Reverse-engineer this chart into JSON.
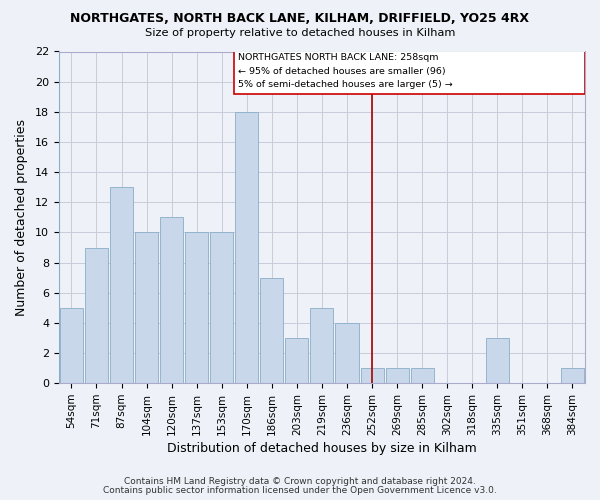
{
  "title": "NORTHGATES, NORTH BACK LANE, KILHAM, DRIFFIELD, YO25 4RX",
  "subtitle": "Size of property relative to detached houses in Kilham",
  "xlabel": "Distribution of detached houses by size in Kilham",
  "ylabel": "Number of detached properties",
  "categories": [
    "54sqm",
    "71sqm",
    "87sqm",
    "104sqm",
    "120sqm",
    "137sqm",
    "153sqm",
    "170sqm",
    "186sqm",
    "203sqm",
    "219sqm",
    "236sqm",
    "252sqm",
    "269sqm",
    "285sqm",
    "302sqm",
    "318sqm",
    "335sqm",
    "351sqm",
    "368sqm",
    "384sqm"
  ],
  "values": [
    5,
    9,
    13,
    10,
    11,
    10,
    10,
    18,
    7,
    3,
    5,
    4,
    1,
    1,
    1,
    0,
    0,
    3,
    0,
    0,
    1
  ],
  "bar_color": "#c8d8ea",
  "bar_edge_color": "#8aaec8",
  "vline_index": 12,
  "vline_color": "#aa0000",
  "annotation_lines": [
    "NORTHGATES NORTH BACK LANE: 258sqm",
    "← 95% of detached houses are smaller (96)",
    "5% of semi-detached houses are larger (5) →"
  ],
  "ylim": [
    0,
    22
  ],
  "yticks": [
    0,
    2,
    4,
    6,
    8,
    10,
    12,
    14,
    16,
    18,
    20,
    22
  ],
  "footer1": "Contains HM Land Registry data © Crown copyright and database right 2024.",
  "footer2": "Contains public sector information licensed under the Open Government Licence v3.0.",
  "background_color": "#eef2f8",
  "plot_background": "#eef2f8",
  "grid_color": "#c8ccda",
  "left_border_color": "#8aaec8"
}
